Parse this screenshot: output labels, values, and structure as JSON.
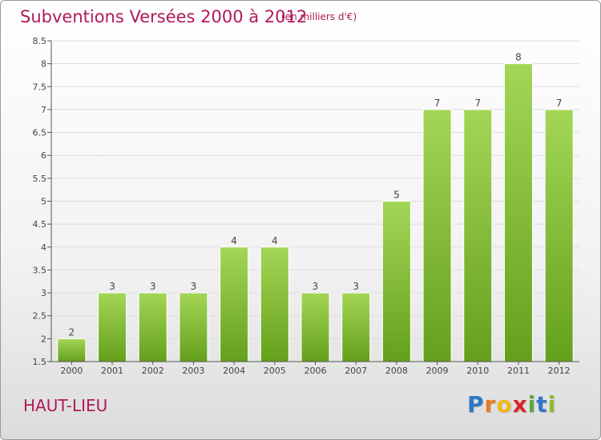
{
  "title": "Subventions Versées 2000 à 2012",
  "subtitle": "(en milliers d'€)",
  "place": "HAUT-LIEU",
  "logo": {
    "letters": [
      "P",
      "r",
      "o",
      "x",
      "i",
      "t",
      "i"
    ],
    "colors": [
      "#2e78c8",
      "#e87b1c",
      "#f0b81a",
      "#d8262b",
      "#58a83a",
      "#2e78c8",
      "#8bbd2a"
    ]
  },
  "colors": {
    "title": "#b0195a",
    "bar_light": "#a4d656",
    "bar_dark": "#64a01c",
    "grid": "#dddddd",
    "axis": "#555555"
  },
  "chart_data": {
    "type": "bar",
    "title": "Subventions Versées 2000 à 2012",
    "subtitle": "(en milliers d'€)",
    "categories": [
      "2000",
      "2001",
      "2002",
      "2003",
      "2004",
      "2005",
      "2006",
      "2007",
      "2008",
      "2009",
      "2010",
      "2011",
      "2012"
    ],
    "values": [
      2,
      3,
      3,
      3,
      4,
      4,
      3,
      3,
      5,
      7,
      7,
      8,
      7
    ],
    "value_labels": [
      "2",
      "3",
      "3",
      "3",
      "4",
      "4",
      "3",
      "3",
      "5",
      "7",
      "7",
      "8",
      "7"
    ],
    "ylim": [
      1.5,
      8.5
    ],
    "yticks": [
      1.5,
      2,
      2.5,
      3,
      3.5,
      4,
      4.5,
      5,
      5.5,
      6,
      6.5,
      7,
      7.5,
      8,
      8.5
    ],
    "ytick_labels": [
      "1.5",
      "2",
      "2.5",
      "3",
      "3.5",
      "4",
      "4.5",
      "5",
      "5.5",
      "6",
      "6.5",
      "7",
      "7.5",
      "8",
      "8.5"
    ],
    "xlabel": "",
    "ylabel": "",
    "grid": true
  }
}
